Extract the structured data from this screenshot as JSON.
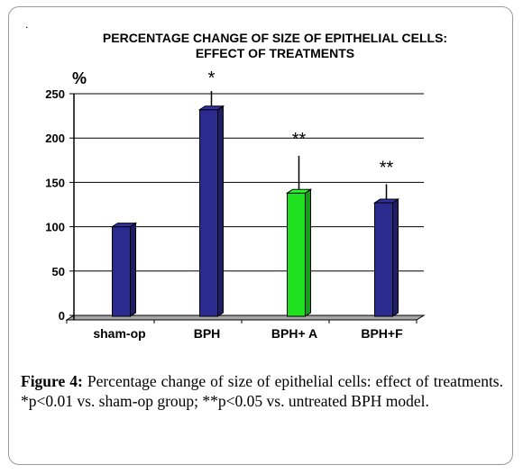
{
  "chart_data": {
    "type": "bar",
    "title_lines": [
      "PERCENTAGE CHANGE OF SIZE OF EPITHELIAL CELLS:",
      "EFFECT OF TREATMENTS"
    ],
    "ylabel": "%",
    "categories": [
      "sham-op",
      "BPH",
      "BPH+ A",
      "BPH+F"
    ],
    "values": [
      100,
      232,
      138,
      127
    ],
    "error_tops": [
      null,
      253,
      180,
      148
    ],
    "significance": [
      "",
      "*",
      "**",
      "**"
    ],
    "bar_colors": [
      "#2b2b8f",
      "#2b2b8f",
      "#1fe01f",
      "#2b2b8f"
    ],
    "ylim": [
      0,
      250
    ],
    "yticks": [
      "0",
      "50",
      "100",
      "150",
      "200",
      "250"
    ],
    "grid": true
  },
  "figure": {
    "dot": ".",
    "caption_label": "Figure 4:",
    "caption_text": " Percentage change of size of epithelial cells: effect of treatments. *p<0.01 vs. sham-op group; **p<0.05 vs. untreated BPH model."
  }
}
